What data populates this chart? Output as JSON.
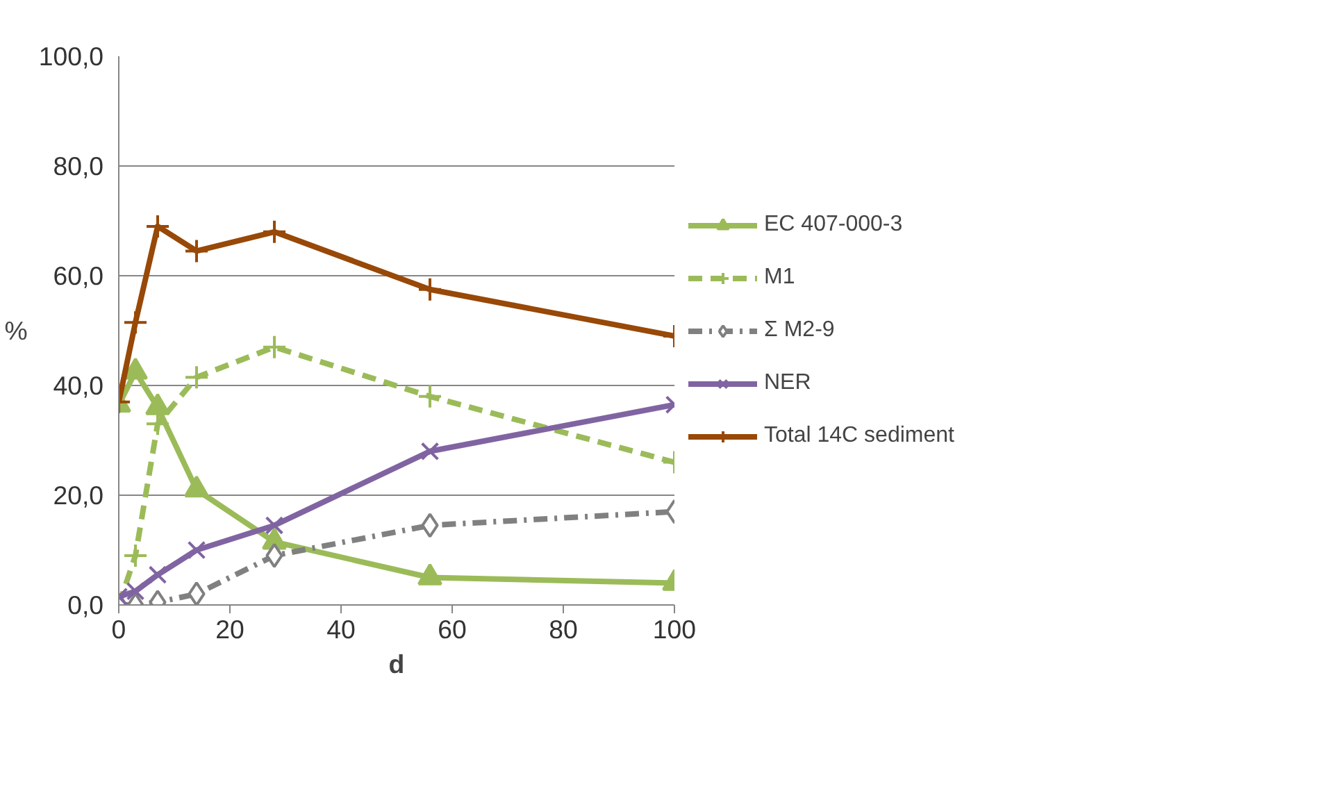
{
  "chart_data": {
    "type": "line",
    "xlabel": "d",
    "ylabel": "%",
    "x": [
      0,
      3,
      7,
      14,
      28,
      56,
      100
    ],
    "series": [
      {
        "name": "EC 407-000-3",
        "color": "#9bbb59",
        "marker": "triangle",
        "line_style": "solid",
        "values": [
          36.5,
          42.5,
          36,
          21,
          11.5,
          5,
          4
        ]
      },
      {
        "name": "M1",
        "color": "#9bbb59",
        "marker": "cross",
        "line_style": "dashed",
        "values": [
          0,
          9,
          33,
          41.5,
          47,
          38,
          26
        ]
      },
      {
        "name": "Σ M2-9",
        "color": "#808080",
        "marker": "diamond",
        "line_style": "dashdot",
        "values": [
          0,
          0,
          0.5,
          2,
          9,
          14.5,
          17
        ]
      },
      {
        "name": "NER",
        "color": "#8064a2",
        "marker": "x",
        "line_style": "solid",
        "values": [
          1.5,
          2.5,
          5.5,
          10,
          14.5,
          28,
          36.5
        ]
      },
      {
        "name": "Total 14C sediment",
        "color": "#984807",
        "marker": "cross",
        "line_style": "solid",
        "values": [
          37,
          51.5,
          69,
          64.5,
          68,
          57.5,
          49
        ]
      }
    ],
    "xlim": [
      0,
      100
    ],
    "ylim": [
      0,
      100
    ],
    "xticks": [
      0,
      20,
      40,
      60,
      80,
      100
    ],
    "yticks": [
      {
        "value": 0,
        "label": "0,0"
      },
      {
        "value": 20,
        "label": "20,0"
      },
      {
        "value": 40,
        "label": "40,0"
      },
      {
        "value": 60,
        "label": "60,0"
      },
      {
        "value": 80,
        "label": "80,0"
      },
      {
        "value": 100,
        "label": "100,0"
      }
    ],
    "grid": "y",
    "legend": "right"
  }
}
